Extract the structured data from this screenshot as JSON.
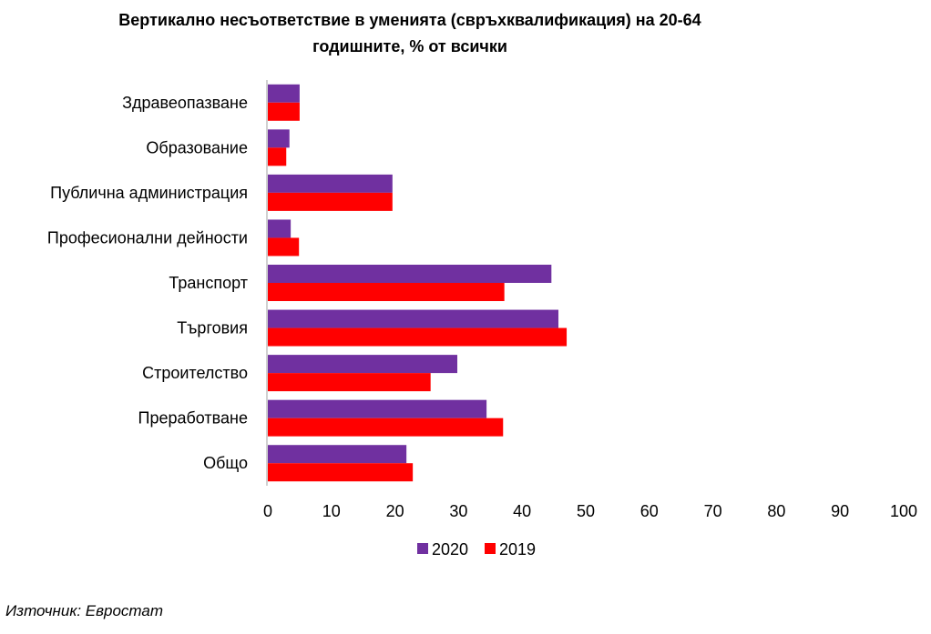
{
  "chart_data": {
    "type": "bar",
    "orientation": "horizontal",
    "title": "Вертикално несъответствие в уменията (свръхквалификация) на 20-64 годишните, % от всички",
    "title_lines": [
      "Вертикално несъответствие в уменията (свръхквалификация) на 20-64",
      "годишните, % от всички"
    ],
    "categories": [
      "Здравеопазване",
      "Образование",
      "Публична администрация",
      "Професионални дейности",
      "Транспорт",
      "Търговия",
      "Строителство",
      "Преработване",
      "Общо"
    ],
    "series": [
      {
        "name": "2020",
        "color": "#7030A0",
        "values": [
          5.0,
          3.4,
          19.6,
          3.6,
          44.6,
          45.7,
          29.8,
          34.4,
          21.8
        ]
      },
      {
        "name": "2019",
        "color": "#FF0000",
        "values": [
          5.0,
          2.9,
          19.6,
          4.9,
          37.2,
          47.0,
          25.6,
          37.0,
          22.8
        ]
      }
    ],
    "xlim": [
      0,
      100
    ],
    "xticks": [
      "0",
      "10",
      "20",
      "30",
      "40",
      "50",
      "60",
      "70",
      "80",
      "90",
      "100"
    ],
    "grid": false,
    "legend": "bottom"
  },
  "source": "Източник: Евростат"
}
